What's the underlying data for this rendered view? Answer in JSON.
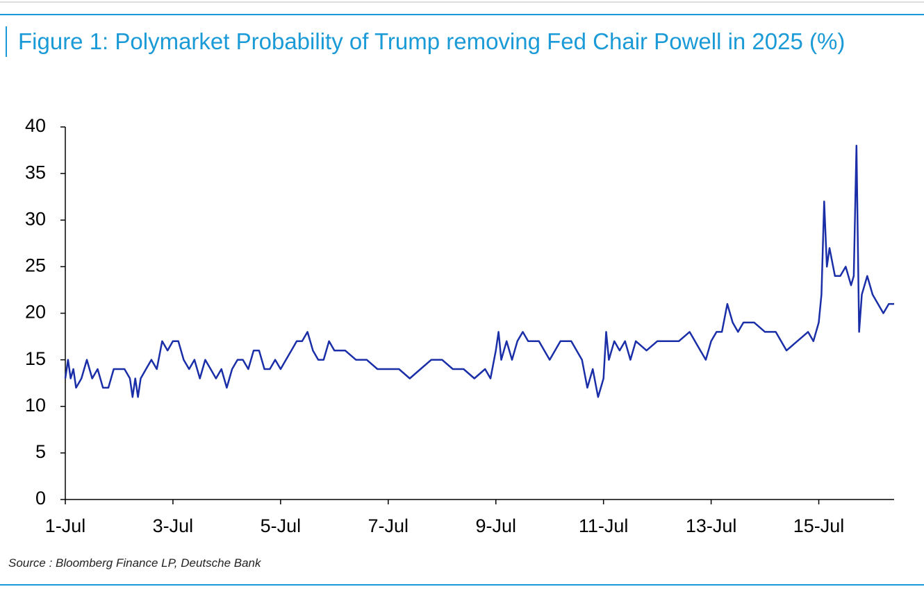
{
  "chart_data": {
    "type": "line",
    "title": "Figure 1: Polymarket Probability of Trump removing Fed Chair Powell in 2025 (%)",
    "source": "Source : Bloomberg Finance LP, Deutsche Bank",
    "x": [
      1.0,
      1.05,
      1.1,
      1.15,
      1.2,
      1.3,
      1.4,
      1.5,
      1.6,
      1.7,
      1.8,
      1.9,
      2.0,
      2.1,
      2.2,
      2.25,
      2.3,
      2.35,
      2.4,
      2.5,
      2.6,
      2.7,
      2.8,
      2.9,
      3.0,
      3.1,
      3.2,
      3.3,
      3.4,
      3.5,
      3.6,
      3.7,
      3.8,
      3.9,
      4.0,
      4.1,
      4.2,
      4.3,
      4.4,
      4.5,
      4.6,
      4.7,
      4.8,
      4.9,
      5.0,
      5.1,
      5.2,
      5.3,
      5.4,
      5.5,
      5.6,
      5.7,
      5.8,
      5.9,
      6.0,
      6.2,
      6.4,
      6.6,
      6.8,
      7.0,
      7.2,
      7.4,
      7.6,
      7.8,
      8.0,
      8.2,
      8.4,
      8.6,
      8.8,
      8.9,
      9.0,
      9.05,
      9.1,
      9.2,
      9.3,
      9.4,
      9.5,
      9.6,
      9.8,
      10.0,
      10.2,
      10.4,
      10.6,
      10.7,
      10.8,
      10.9,
      11.0,
      11.05,
      11.1,
      11.2,
      11.3,
      11.4,
      11.5,
      11.6,
      11.8,
      12.0,
      12.2,
      12.4,
      12.6,
      12.8,
      12.9,
      13.0,
      13.1,
      13.2,
      13.3,
      13.4,
      13.5,
      13.6,
      13.8,
      14.0,
      14.2,
      14.4,
      14.6,
      14.8,
      14.9,
      15.0,
      15.05,
      15.1,
      15.15,
      15.2,
      15.3,
      15.4,
      15.5,
      15.6,
      15.65,
      15.7,
      15.75,
      15.8,
      15.9,
      16.0,
      16.1,
      16.2,
      16.3,
      16.4
    ],
    "series": [
      {
        "color": "#1a2ea8",
        "values": [
          13,
          15,
          13,
          14,
          12,
          13,
          15,
          13,
          14,
          12,
          12,
          14,
          14,
          14,
          13,
          11,
          13,
          11,
          13,
          14,
          15,
          14,
          17,
          16,
          17,
          17,
          15,
          14,
          15,
          13,
          15,
          14,
          13,
          14,
          12,
          14,
          15,
          15,
          14,
          16,
          16,
          14,
          14,
          15,
          14,
          15,
          16,
          17,
          17,
          18,
          16,
          15,
          15,
          17,
          16,
          16,
          15,
          15,
          14,
          14,
          14,
          13,
          14,
          15,
          15,
          14,
          14,
          13,
          14,
          13,
          16,
          18,
          15,
          17,
          15,
          17,
          18,
          17,
          17,
          15,
          17,
          17,
          15,
          12,
          14,
          11,
          13,
          18,
          15,
          17,
          16,
          17,
          15,
          17,
          16,
          17,
          17,
          17,
          18,
          16,
          15,
          17,
          18,
          18,
          21,
          19,
          18,
          19,
          19,
          18,
          18,
          16,
          17,
          18,
          17,
          19,
          22,
          32,
          25,
          27,
          24,
          24,
          25,
          23,
          24,
          38,
          18,
          22,
          24,
          22,
          21,
          20,
          21,
          21
        ]
      }
    ],
    "xlim": [
      1,
      16.4
    ],
    "xticks": [
      {
        "value": 1,
        "label": "1-Jul"
      },
      {
        "value": 3,
        "label": "3-Jul"
      },
      {
        "value": 5,
        "label": "5-Jul"
      },
      {
        "value": 7,
        "label": "7-Jul"
      },
      {
        "value": 9,
        "label": "9-Jul"
      },
      {
        "value": 11,
        "label": "11-Jul"
      },
      {
        "value": 13,
        "label": "13-Jul"
      },
      {
        "value": 15,
        "label": "15-Jul"
      }
    ],
    "ylim": [
      0,
      40
    ],
    "yticks": [
      0,
      5,
      10,
      15,
      20,
      25,
      30,
      35,
      40
    ]
  }
}
